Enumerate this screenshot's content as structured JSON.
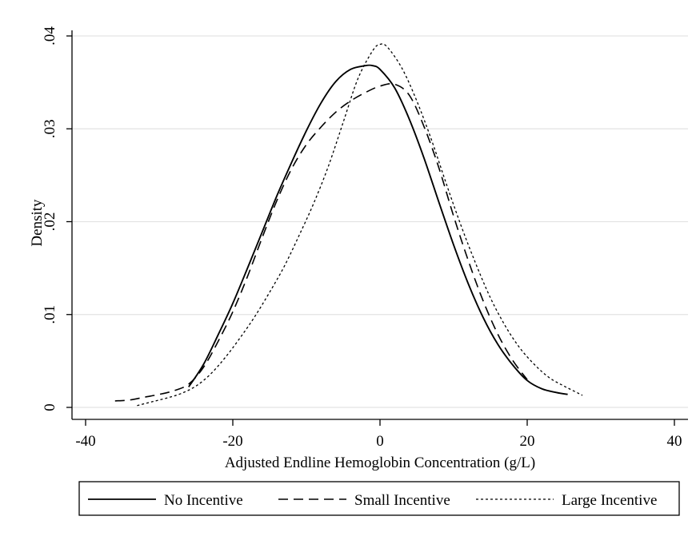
{
  "chart_data": {
    "type": "line",
    "title": "",
    "xlabel": "Adjusted Endline Hemoglobin Concentration (g/L)",
    "ylabel": "Density",
    "xlim": [
      -40,
      40
    ],
    "ylim": [
      0,
      0.04
    ],
    "xticks": [
      -40,
      -20,
      0,
      20,
      40
    ],
    "xtick_labels": [
      "-40",
      "-20",
      "0",
      "20",
      "40"
    ],
    "yticks": [
      0,
      0.01,
      0.02,
      0.03,
      0.04
    ],
    "ytick_labels": [
      "0",
      ".01",
      ".02",
      ".03",
      ".04"
    ],
    "grid": "horizontal",
    "legend_position": "bottom",
    "series": [
      {
        "name": "No Incentive",
        "style": "solid",
        "color": "#000000",
        "x": [
          -26,
          -24,
          -22,
          -20,
          -18,
          -16,
          -14,
          -12,
          -10,
          -8,
          -6,
          -4,
          -2,
          -1,
          0,
          2,
          4,
          6,
          8,
          10,
          12,
          14,
          16,
          18,
          20,
          22,
          24,
          25.5
        ],
        "y": [
          0.0022,
          0.0046,
          0.0078,
          0.0112,
          0.015,
          0.0189,
          0.0228,
          0.0264,
          0.0298,
          0.0328,
          0.0351,
          0.0364,
          0.0368,
          0.0368,
          0.0364,
          0.0344,
          0.031,
          0.0268,
          0.0221,
          0.0175,
          0.0133,
          0.0097,
          0.0068,
          0.0046,
          0.0029,
          0.002,
          0.0016,
          0.0014
        ]
      },
      {
        "name": "Small Incentive",
        "style": "dashed",
        "color": "#000000",
        "x": [
          -36,
          -34,
          -32,
          -30,
          -28,
          -26,
          -24,
          -22,
          -20,
          -18,
          -16,
          -14,
          -12,
          -10,
          -8,
          -6,
          -4,
          -2,
          0,
          2,
          4,
          6,
          8,
          10,
          12,
          14,
          16,
          18,
          20
        ],
        "y": [
          0.0007,
          0.0008,
          0.0011,
          0.0014,
          0.0018,
          0.0025,
          0.0043,
          0.0071,
          0.0103,
          0.0141,
          0.0183,
          0.0223,
          0.0257,
          0.0283,
          0.0302,
          0.0318,
          0.033,
          0.0339,
          0.0346,
          0.0348,
          0.0336,
          0.0302,
          0.0258,
          0.0206,
          0.0158,
          0.0115,
          0.0079,
          0.0051,
          0.003
        ]
      },
      {
        "name": "Large Incentive",
        "style": "dotted",
        "color": "#000000",
        "x": [
          -33,
          -31,
          -29,
          -27,
          -25,
          -23,
          -21,
          -19,
          -17,
          -15,
          -13,
          -11,
          -9,
          -7,
          -5,
          -3,
          -1,
          0,
          1,
          3,
          5,
          7,
          9,
          11,
          13,
          15,
          17,
          19,
          21,
          23,
          25,
          27.5
        ],
        "y": [
          0.0002,
          0.0006,
          0.001,
          0.0015,
          0.0023,
          0.0036,
          0.0054,
          0.0075,
          0.0098,
          0.0124,
          0.0152,
          0.0185,
          0.022,
          0.026,
          0.0307,
          0.0354,
          0.0384,
          0.0391,
          0.0388,
          0.0365,
          0.033,
          0.0288,
          0.0241,
          0.0196,
          0.0155,
          0.0118,
          0.0088,
          0.0064,
          0.0046,
          0.0032,
          0.0023,
          0.0013
        ]
      }
    ]
  }
}
